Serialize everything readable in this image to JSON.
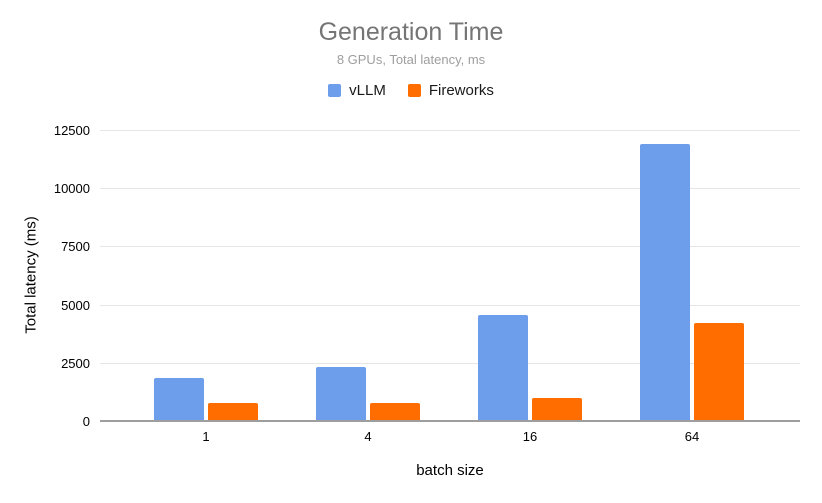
{
  "chart": {
    "title": "Generation Time",
    "subtitle": "8 GPUs, Total latency, ms",
    "x_axis_title": "batch size",
    "y_axis_title": "Total latency (ms)"
  },
  "chart_data": {
    "type": "bar",
    "title": "Generation Time",
    "subtitle": "8 GPUs, Total latency, ms",
    "categories": [
      "1",
      "4",
      "16",
      "64"
    ],
    "series": [
      {
        "name": "vLLM",
        "color": "#6D9EEB",
        "values": [
          1850,
          2300,
          4550,
          11880
        ]
      },
      {
        "name": "Fireworks",
        "color": "#FF6D01",
        "values": [
          760,
          790,
          980,
          4200
        ]
      }
    ],
    "xlabel": "batch size",
    "ylabel": "Total latency (ms)",
    "ylim": [
      0,
      12500
    ],
    "yticks": [
      0,
      2500,
      5000,
      7500,
      10000,
      12500
    ],
    "grid": true,
    "legend_position": "top",
    "background_color": "#ffffff",
    "title_color": "#757575",
    "subtitle_color": "#9e9e9e",
    "gridline_color": "#e6e6e6",
    "baseline_color": "#9e9e9e"
  }
}
